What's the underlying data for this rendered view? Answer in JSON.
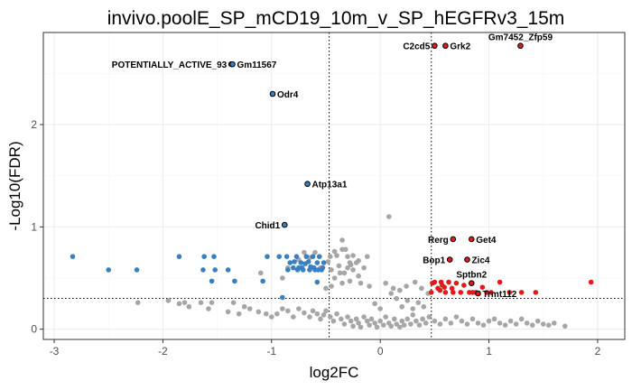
{
  "chart_data": {
    "type": "scatter",
    "title": "invivo.poolE_SP_mCD19_10m_v_SP_hEGFRv3_15m",
    "xlabel": "log2FC",
    "ylabel": "-Log10(FDR)",
    "xlim": [
      -3.1,
      2.25
    ],
    "ylim": [
      -0.1,
      2.9
    ],
    "x_ticks": [
      -3,
      -2,
      -1,
      0,
      1,
      2
    ],
    "y_ticks": [
      0,
      1,
      2
    ],
    "grid": true,
    "legend": "none",
    "thresholds": {
      "log2fc": [
        -0.47,
        0.47
      ],
      "neg_log10_fdr": 0.301
    },
    "colors": {
      "nonsignificant": "#a6a6a6",
      "down": "#3a7fbf",
      "up": "#e31a1c",
      "labeled_outline": "#000000"
    },
    "series": [
      {
        "group": "down",
        "x": [
          -2.83,
          -2.5,
          -2.24,
          -1.85,
          -1.62,
          -1.63,
          -1.53,
          -1.52,
          -1.34,
          -1.04,
          -0.93,
          -0.86,
          -0.83,
          -0.79,
          -0.77,
          -0.75,
          -0.73,
          -0.71,
          -0.68,
          -0.66,
          -0.64,
          -0.62,
          -0.6,
          -0.58,
          -0.56,
          -0.54,
          -0.52,
          -0.85,
          -0.8,
          -0.76,
          -0.72,
          -0.69,
          -0.65,
          -0.61,
          -0.57,
          -0.53,
          -1.4,
          -1.55,
          -1.08,
          -0.9,
          -0.58
        ],
        "y": [
          0.71,
          0.58,
          0.58,
          0.71,
          0.71,
          0.58,
          0.71,
          0.58,
          0.47,
          0.71,
          0.71,
          0.71,
          0.65,
          0.66,
          0.71,
          0.6,
          0.65,
          0.58,
          0.71,
          0.66,
          0.61,
          0.71,
          0.58,
          0.65,
          0.71,
          0.58,
          0.65,
          0.58,
          0.6,
          0.58,
          0.6,
          0.64,
          0.58,
          0.6,
          0.58,
          0.6,
          0.58,
          0.47,
          0.47,
          0.31,
          0.46
        ]
      },
      {
        "group": "up",
        "x": [
          0.47,
          0.5,
          0.53,
          0.56,
          0.59,
          0.63,
          0.67,
          0.7,
          0.74,
          0.77,
          0.82,
          0.88,
          0.94,
          1.02,
          1.1,
          1.19,
          1.3,
          1.43,
          1.94,
          0.55,
          0.6,
          0.48,
          0.66,
          0.57,
          0.85,
          0.98
        ],
        "y": [
          0.36,
          0.46,
          0.4,
          0.46,
          0.41,
          0.46,
          0.36,
          0.45,
          0.36,
          0.43,
          0.36,
          0.36,
          0.41,
          0.36,
          0.46,
          0.36,
          0.36,
          0.36,
          0.46,
          0.38,
          0.36,
          0.45,
          0.4,
          0.43,
          0.36,
          0.36
        ]
      },
      {
        "group": "nonsignificant",
        "x": [
          -2.23,
          -1.95,
          -1.85,
          -1.8,
          -1.76,
          -1.65,
          -1.58,
          -1.55,
          -1.4,
          -1.35,
          -1.3,
          -1.25,
          -1.2,
          -1.12,
          -1.05,
          -1.0,
          -0.95,
          -0.9,
          -0.85,
          -0.8,
          -0.75,
          -0.7,
          -0.65,
          -0.62,
          -0.58,
          -0.55,
          -0.52,
          -0.5,
          -0.46,
          -0.43,
          -0.4,
          -0.36,
          -0.33,
          -0.3,
          -0.27,
          -0.25,
          -0.22,
          -0.2,
          -0.18,
          -0.15,
          -0.12,
          -0.1,
          -0.08,
          -0.05,
          -0.03,
          0.0,
          0.03,
          0.05,
          0.08,
          0.1,
          0.13,
          0.15,
          0.18,
          0.2,
          0.22,
          0.25,
          0.28,
          0.3,
          0.33,
          0.36,
          0.39,
          0.42,
          0.45,
          0.5,
          0.55,
          0.6,
          0.65,
          0.7,
          0.75,
          0.8,
          0.85,
          0.9,
          0.95,
          1.0,
          1.05,
          1.1,
          1.15,
          1.2,
          1.25,
          1.3,
          1.35,
          1.4,
          1.45,
          1.5,
          1.55,
          1.6,
          1.7,
          -0.4,
          -0.35,
          -0.3,
          -0.28,
          -0.25,
          -0.2,
          -0.15,
          -0.12,
          -0.35,
          -0.42,
          -0.3,
          -0.38,
          -0.22,
          -0.46,
          -0.6,
          -0.55,
          -0.48,
          -0.45,
          -0.32,
          -0.37,
          -0.27,
          -0.2,
          -0.25,
          0.08,
          0.0,
          -0.05,
          0.1,
          0.15,
          0.2,
          0.25,
          0.3,
          0.35,
          0.4,
          0.05,
          0.12,
          0.18,
          0.24,
          0.32,
          0.38,
          0.44,
          -0.85,
          -0.75,
          -0.7,
          -0.65,
          -0.9,
          -1.1,
          -0.45,
          -0.5,
          -0.35,
          -0.42,
          -0.33,
          -0.28,
          -0.18,
          -0.1
        ],
        "y": [
          0.26,
          0.28,
          0.25,
          0.26,
          0.22,
          0.26,
          0.2,
          0.26,
          0.17,
          0.26,
          0.15,
          0.22,
          0.2,
          0.17,
          0.15,
          0.12,
          0.15,
          0.2,
          0.18,
          0.12,
          0.2,
          0.16,
          0.12,
          0.18,
          0.15,
          0.1,
          0.14,
          0.18,
          0.12,
          0.08,
          0.15,
          0.1,
          0.05,
          0.12,
          0.08,
          0.03,
          0.1,
          0.06,
          0.02,
          0.12,
          0.08,
          0.04,
          0.1,
          0.06,
          0.02,
          0.08,
          0.04,
          0.12,
          0.06,
          0.03,
          0.1,
          0.05,
          0.02,
          0.08,
          0.04,
          0.1,
          0.05,
          0.14,
          0.08,
          0.04,
          0.1,
          0.06,
          0.12,
          0.08,
          0.05,
          0.1,
          0.06,
          0.12,
          0.08,
          0.05,
          0.1,
          0.06,
          0.04,
          0.08,
          0.1,
          0.06,
          0.04,
          0.08,
          0.05,
          0.1,
          0.06,
          0.04,
          0.08,
          0.05,
          0.04,
          0.06,
          0.03,
          0.72,
          0.78,
          0.71,
          0.65,
          0.72,
          0.67,
          0.6,
          0.71,
          0.87,
          0.76,
          0.6,
          0.62,
          0.65,
          0.71,
          0.75,
          0.6,
          0.66,
          0.58,
          0.78,
          0.55,
          0.63,
          0.52,
          0.58,
          1.1,
          0.2,
          0.25,
          0.35,
          0.3,
          0.22,
          0.28,
          0.2,
          0.26,
          0.22,
          0.45,
          0.4,
          0.38,
          0.42,
          0.46,
          0.4,
          0.35,
          0.6,
          0.68,
          0.75,
          0.7,
          0.5,
          0.55,
          0.42,
          0.4,
          0.45,
          0.5,
          0.55,
          0.47,
          0.45,
          0.42
        ]
      }
    ],
    "labeled_points": [
      {
        "label": "POTENTIALLY_ACTIVE_93",
        "x": -1.37,
        "y": 2.59,
        "group": "down",
        "anchor": "end"
      },
      {
        "label": "Gm11567",
        "x": -1.36,
        "y": 2.59,
        "group": "down",
        "anchor": "start"
      },
      {
        "label": "Odr4",
        "x": -0.99,
        "y": 2.3,
        "group": "down",
        "anchor": "start"
      },
      {
        "label": "Atp13a1",
        "x": -0.67,
        "y": 1.42,
        "group": "down",
        "anchor": "start"
      },
      {
        "label": "Chid1",
        "x": -0.88,
        "y": 1.02,
        "group": "down",
        "anchor": "end"
      },
      {
        "label": "C2cd5",
        "x": 0.5,
        "y": 2.77,
        "group": "up",
        "anchor": "end"
      },
      {
        "label": "Grk2",
        "x": 0.6,
        "y": 2.77,
        "group": "up",
        "anchor": "start"
      },
      {
        "label": "Gm7452_Zfp59",
        "x": 1.29,
        "y": 2.77,
        "group": "up",
        "anchor": "middle"
      },
      {
        "label": "Rerg",
        "x": 0.67,
        "y": 0.88,
        "group": "up",
        "anchor": "end"
      },
      {
        "label": "Get4",
        "x": 0.84,
        "y": 0.88,
        "group": "up",
        "anchor": "start"
      },
      {
        "label": "Bop1",
        "x": 0.64,
        "y": 0.68,
        "group": "up",
        "anchor": "end"
      },
      {
        "label": "Zic4",
        "x": 0.8,
        "y": 0.68,
        "group": "up",
        "anchor": "start"
      },
      {
        "label": "Sptbn2",
        "x": 0.84,
        "y": 0.45,
        "group": "up",
        "anchor": "middle"
      },
      {
        "label": "Trmt112",
        "x": 0.9,
        "y": 0.35,
        "group": "up",
        "anchor": "start"
      }
    ]
  }
}
